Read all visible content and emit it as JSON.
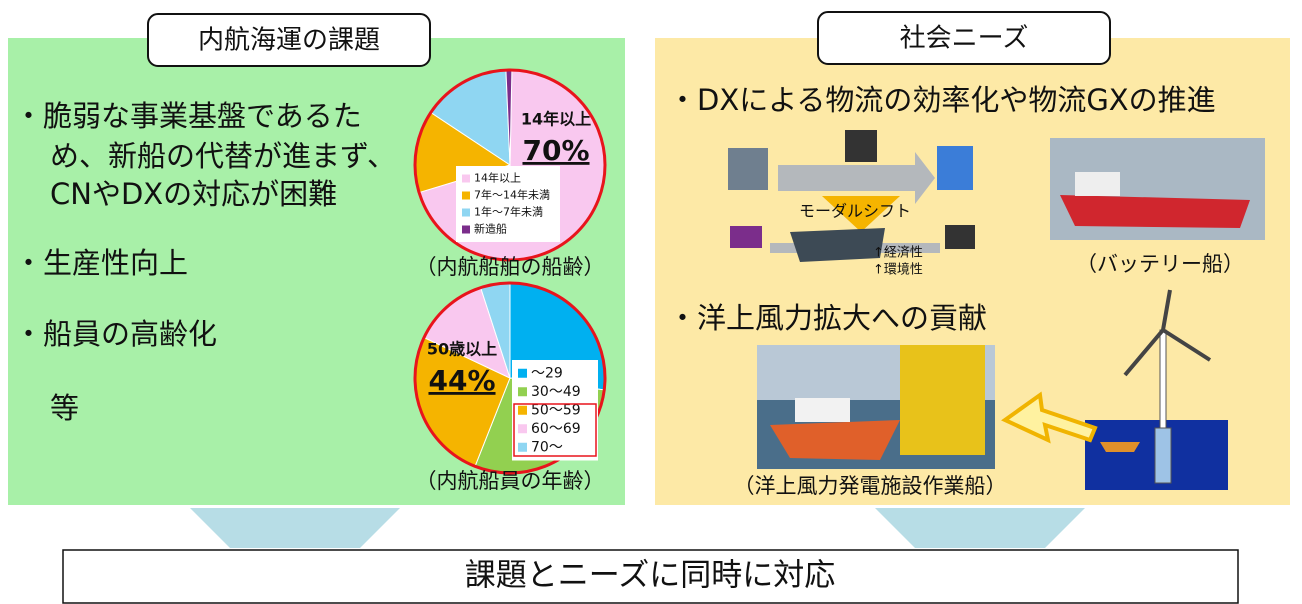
{
  "left_panel": {
    "title": "内航海運の課題",
    "bullet_1": [
      "・脆弱な事業基盤であるた",
      "め、新船の代替が進まず、",
      "CNやDXの対応が困難"
    ],
    "bullet_2": "・生産性向上",
    "bullet_3": "・船員の高齢化",
    "etc": "等",
    "ship_age_chart": {
      "type": "pie",
      "caption": "（内航船舶の船齢）",
      "categories": [
        "14年以上",
        "7年～14年未満",
        "1年～7年未満",
        "新造船"
      ],
      "values": [
        70,
        14,
        15,
        1
      ],
      "colors": [
        "#f9c8ef",
        "#f5b400",
        "#8fd6f2",
        "#7b2d8b"
      ],
      "callout": {
        "label": "14年以上",
        "value_label": "70%"
      }
    },
    "crew_age_chart": {
      "type": "pie",
      "caption": "（内航船員の年齢）",
      "categories": [
        "～29",
        "30～49",
        "50～59",
        "60～69",
        "70～"
      ],
      "values": [
        27,
        29,
        26,
        13,
        5
      ],
      "colors": [
        "#00b0f0",
        "#92d050",
        "#f5b400",
        "#f9c8ef",
        "#8fd6f2"
      ],
      "callout": {
        "label": "50歳以上",
        "value_label": "44%"
      }
    }
  },
  "right_panel": {
    "title": "社会ニーズ",
    "bullet_1": "・DXによる物流の効率化や物流GXの推進",
    "modal_shift": "モーダルシフト",
    "benefit_1": "↑経済性",
    "benefit_2": "↑環境性",
    "battery_ship_caption": "（バッテリー船）",
    "bullet_2": "・洋上風力拡大への貢献",
    "work_ship_caption": "（洋上風力発電施設作業船）"
  },
  "conclusion": "課題とニーズに同時に対応"
}
